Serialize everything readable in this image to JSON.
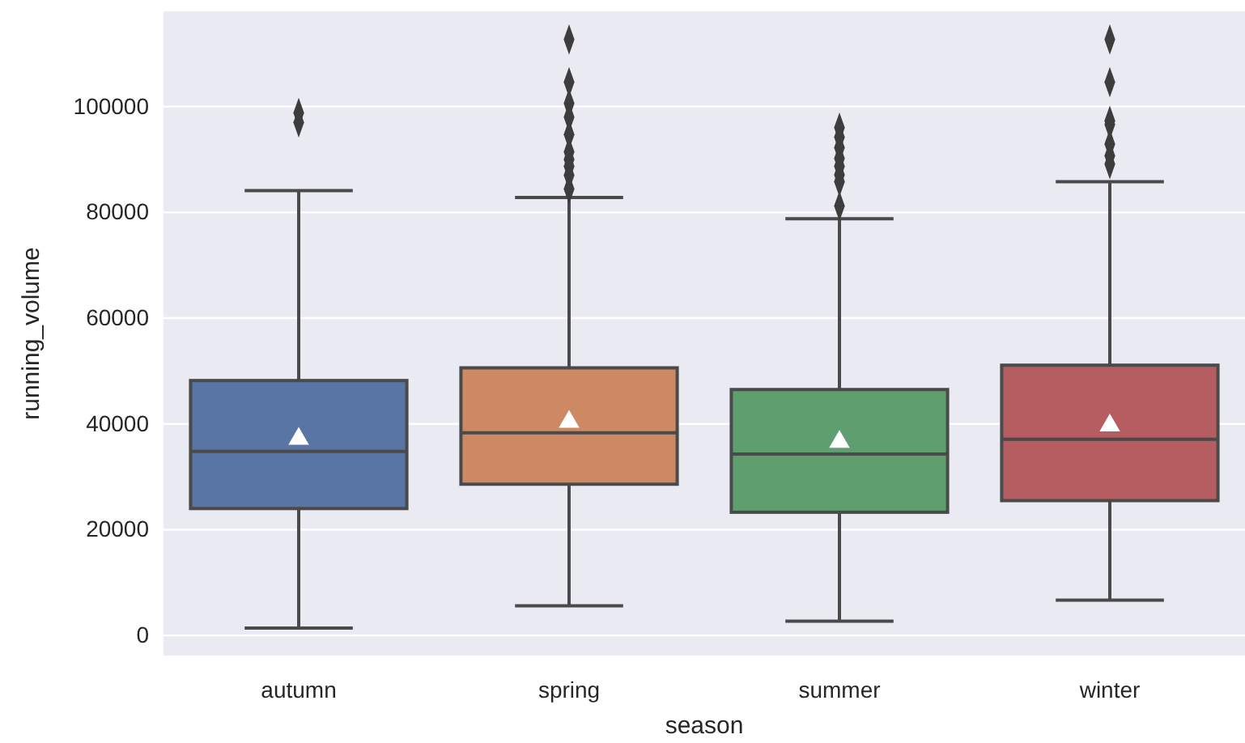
{
  "chart_data": {
    "type": "box",
    "xlabel": "season",
    "ylabel": "running_volume",
    "categories": [
      "autumn",
      "spring",
      "summer",
      "winter"
    ],
    "colors": [
      "#5975a4",
      "#cc8963",
      "#5f9e6e",
      "#b55d60"
    ],
    "boxes": [
      {
        "low": 1400,
        "q1": 24000,
        "median": 34800,
        "q3": 48200,
        "high": 84100,
        "mean": 37500,
        "outliers": [
          98800,
          97000
        ]
      },
      {
        "low": 5600,
        "q1": 28600,
        "median": 38300,
        "q3": 50600,
        "high": 82800,
        "mean": 40700,
        "outliers": [
          112700,
          104600,
          100600,
          98000,
          94700,
          91400,
          90000,
          88700,
          87000,
          84400
        ]
      },
      {
        "low": 2700,
        "q1": 23300,
        "median": 34300,
        "q3": 46500,
        "high": 78800,
        "mean": 36900,
        "outliers": [
          96000,
          94200,
          92200,
          90200,
          88700,
          87100,
          85800,
          81200
        ]
      },
      {
        "low": 6700,
        "q1": 25500,
        "median": 37100,
        "q3": 51100,
        "high": 85800,
        "mean": 40000,
        "outliers": [
          112700,
          104600,
          97300,
          96600,
          92900,
          90700,
          89100
        ]
      }
    ],
    "ylim": [
      -3800,
      118000
    ],
    "yticks": [
      0,
      20000,
      40000,
      60000,
      80000,
      100000
    ],
    "grid": "y",
    "marker": "diamond"
  }
}
